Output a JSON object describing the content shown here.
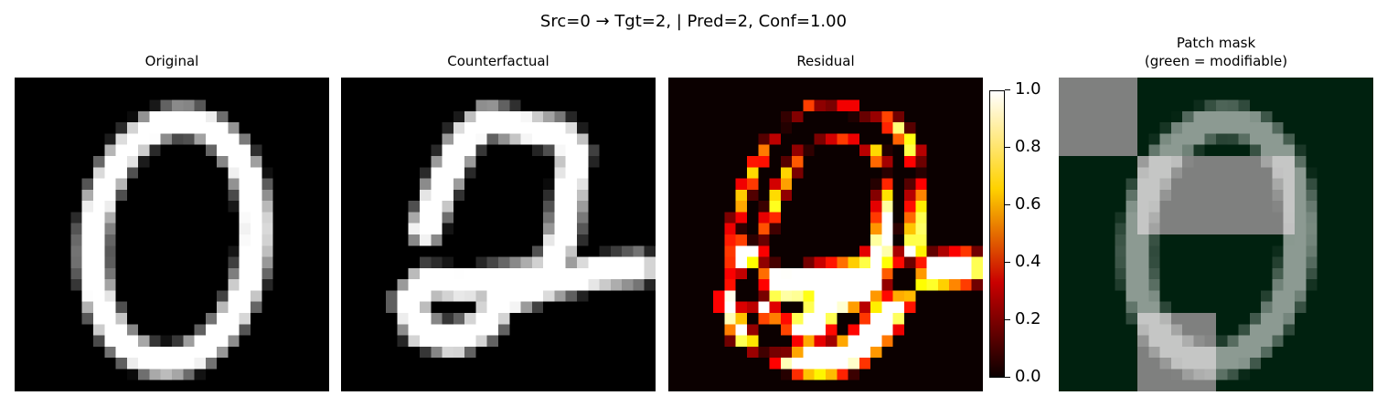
{
  "suptitle": "Src=0 → Tgt=2, | Pred=2, Conf=1.00",
  "chart_data": [
    {
      "type": "heatmap",
      "title": "Original",
      "grid": "28x28",
      "colormap": "gray",
      "content": "digit 0"
    },
    {
      "type": "heatmap",
      "title": "Counterfactual",
      "grid": "28x28",
      "colormap": "gray",
      "content": "digit 2"
    },
    {
      "type": "heatmap",
      "title": "Residual",
      "grid": "28x28",
      "colormap": "hot",
      "vmin": 0.0,
      "vmax": 1.0,
      "colorbar_ticks": [
        "0.0",
        "0.2",
        "0.4",
        "0.6",
        "0.8",
        "1.0"
      ]
    },
    {
      "type": "heatmap",
      "title_line1": "Patch mask",
      "title_line2": "(green = modifiable)",
      "grid": "4x4 patches",
      "modifiable_color": "#00210f",
      "fixed_color": "#7f807f"
    }
  ],
  "colors": {
    "cmap_hot": [
      "#0b0000",
      "#c90000",
      "#ffd200",
      "#ffffff"
    ],
    "mask_green": "#00210f",
    "mask_gray": "#7f807f"
  }
}
